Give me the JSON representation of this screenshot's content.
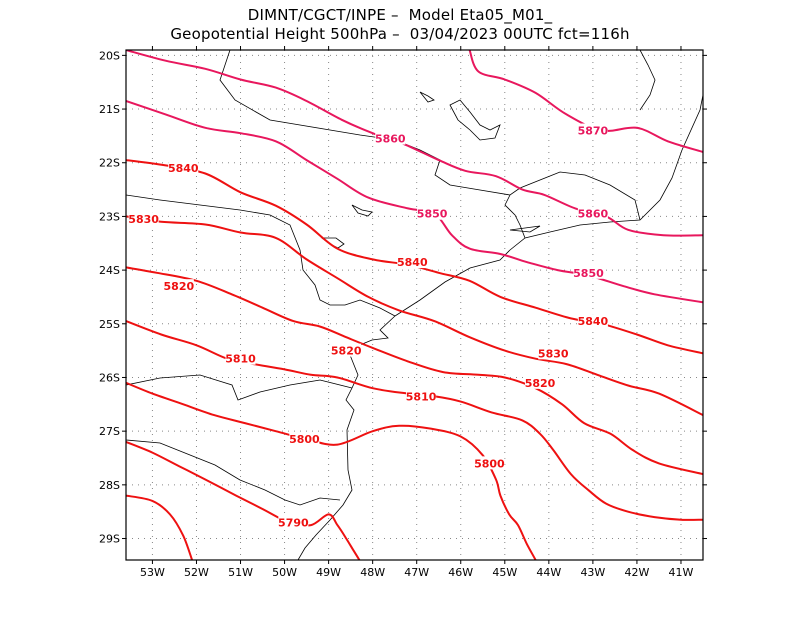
{
  "header": {
    "line1": "DIMNT/CGCT/INPE –  Model Eta05_M01_",
    "line2": "Geopotential Height 500hPa –  03/04/2023 00UTC fct=116h"
  },
  "map": {
    "lon_range": [
      -53.6,
      -40.5
    ],
    "lat_range": [
      -29.4,
      -19.9
    ],
    "lat_labels": [
      "20S",
      "21S",
      "22S",
      "23S",
      "24S",
      "25S",
      "26S",
      "27S",
      "28S",
      "29S"
    ],
    "lat_values": [
      -20,
      -21,
      -22,
      -23,
      -24,
      -25,
      -26,
      -27,
      -28,
      -29
    ],
    "lon_labels": [
      "53W",
      "52W",
      "51W",
      "50W",
      "49W",
      "48W",
      "47W",
      "46W",
      "45W",
      "44W",
      "43W",
      "42W",
      "41W"
    ],
    "lon_values": [
      -53,
      -52,
      -51,
      -50,
      -49,
      -48,
      -47,
      -46,
      -45,
      -44,
      -43,
      -42,
      -41
    ],
    "grid": true,
    "colors": {
      "contour_high": "#e8175d",
      "contour_low": "#ee1111",
      "boundary": "#000000",
      "grid": "#888888"
    }
  },
  "chart_data": {
    "type": "contour",
    "field": "geopotential height",
    "contours": [
      {
        "value": 5870,
        "label": "5870",
        "lon": [
          -45.8,
          -45.6,
          -45.0,
          -44.3,
          -43.6,
          -42.8,
          -42.0,
          -41.3,
          -40.5
        ],
        "lat": [
          -19.9,
          -20.3,
          -20.45,
          -20.7,
          -21.1,
          -21.4,
          -21.35,
          -21.6,
          -21.8
        ]
      },
      {
        "value": 5860,
        "label": "5860",
        "lon": [
          -53.6,
          -52.7,
          -51.8,
          -51.0,
          -50.2,
          -49.5,
          -48.7,
          -48.0,
          -47.3,
          -46.5,
          -45.9,
          -45.2,
          -44.6,
          -44.1,
          -43.4,
          -42.7,
          -42.2,
          -41.4,
          -40.5
        ],
        "lat": [
          -19.9,
          -20.1,
          -20.25,
          -20.45,
          -20.6,
          -20.85,
          -21.2,
          -21.45,
          -21.65,
          -21.95,
          -22.15,
          -22.25,
          -22.5,
          -22.6,
          -22.85,
          -23.0,
          -23.25,
          -23.35,
          -23.35
        ]
      },
      {
        "value": 5850,
        "label": "5850",
        "lon": [
          -53.6,
          -52.7,
          -51.8,
          -51.0,
          -50.2,
          -49.5,
          -48.8,
          -48.1,
          -47.2,
          -46.6,
          -46.2,
          -45.8,
          -45.1,
          -44.5,
          -43.8,
          -43.1,
          -42.3,
          -41.6,
          -40.5
        ],
        "lat": [
          -20.85,
          -21.1,
          -21.35,
          -21.45,
          -21.6,
          -21.95,
          -22.3,
          -22.65,
          -22.85,
          -22.95,
          -23.35,
          -23.6,
          -23.7,
          -23.85,
          -24.0,
          -24.1,
          -24.3,
          -24.45,
          -24.6
        ]
      },
      {
        "value": 5840,
        "label": "5840",
        "lon": [
          -53.6,
          -52.7,
          -51.8,
          -51.0,
          -50.2,
          -49.5,
          -48.8,
          -48.0,
          -47.2,
          -46.5,
          -45.8,
          -45.1,
          -44.3,
          -43.5,
          -42.8,
          -42.0,
          -41.3,
          -40.5
        ],
        "lat": [
          -21.95,
          -22.05,
          -22.2,
          -22.55,
          -22.8,
          -23.15,
          -23.6,
          -23.8,
          -23.9,
          -24.05,
          -24.2,
          -24.5,
          -24.7,
          -24.9,
          -25.0,
          -25.2,
          -25.4,
          -25.55
        ]
      },
      {
        "value": 5830,
        "label": "5830",
        "lon": [
          -53.6,
          -52.8,
          -51.8,
          -51.0,
          -50.2,
          -49.5,
          -48.8,
          -48.1,
          -47.4,
          -46.6,
          -45.8,
          -45.0,
          -44.3,
          -43.6,
          -42.9,
          -42.2,
          -41.5,
          -40.5
        ],
        "lat": [
          -23.0,
          -23.1,
          -23.15,
          -23.3,
          -23.4,
          -23.8,
          -24.15,
          -24.5,
          -24.75,
          -24.95,
          -25.25,
          -25.5,
          -25.65,
          -25.75,
          -25.95,
          -26.15,
          -26.3,
          -26.7
        ]
      },
      {
        "value": 5820,
        "label": "5820",
        "lon": [
          -53.6,
          -52.9,
          -52.0,
          -51.2,
          -50.5,
          -49.8,
          -49.2,
          -48.6,
          -48.0,
          -47.2,
          -46.4,
          -45.6,
          -45.0,
          -44.3,
          -43.7,
          -43.2,
          -42.6,
          -42.1,
          -41.5,
          -40.5
        ],
        "lat": [
          -23.95,
          -24.05,
          -24.2,
          -24.45,
          -24.7,
          -24.95,
          -25.05,
          -25.25,
          -25.45,
          -25.7,
          -25.9,
          -25.95,
          -26.0,
          -26.2,
          -26.5,
          -26.85,
          -27.05,
          -27.35,
          -27.6,
          -27.8
        ]
      },
      {
        "value": 5810,
        "label": "5810",
        "lon": [
          -53.6,
          -52.8,
          -52.0,
          -51.3,
          -50.7,
          -50.0,
          -49.4,
          -48.8,
          -48.0,
          -47.2,
          -46.6,
          -46.0,
          -45.3,
          -44.6,
          -44.2,
          -43.9,
          -43.5,
          -43.1,
          -42.7,
          -42.2,
          -41.6,
          -41.0,
          -40.5
        ],
        "lat": [
          -24.95,
          -25.2,
          -25.4,
          -25.65,
          -25.75,
          -25.85,
          -25.95,
          -26.0,
          -26.2,
          -26.3,
          -26.35,
          -26.45,
          -26.65,
          -26.8,
          -27.05,
          -27.35,
          -27.8,
          -28.1,
          -28.35,
          -28.5,
          -28.6,
          -28.65,
          -28.65
        ]
      },
      {
        "value": 5800,
        "label": "5800",
        "lon": [
          -53.6,
          -53.0,
          -52.3,
          -51.6,
          -50.9,
          -50.2,
          -49.5,
          -48.8,
          -48.0,
          -47.4,
          -46.7,
          -46.0,
          -45.5,
          -45.2,
          -45.1,
          -44.9,
          -44.7,
          -44.5,
          -44.3
        ],
        "lat": [
          -26.1,
          -26.3,
          -26.5,
          -26.7,
          -26.85,
          -27.0,
          -27.15,
          -27.25,
          -27.0,
          -26.9,
          -26.95,
          -27.1,
          -27.45,
          -27.9,
          -28.2,
          -28.55,
          -28.75,
          -29.1,
          -29.4
        ]
      },
      {
        "value": 5790,
        "label": "5790",
        "lon": [
          -53.6,
          -53.0,
          -52.4,
          -51.8,
          -51.1,
          -50.5,
          -49.9,
          -49.4,
          -49.0,
          -48.8,
          -48.6,
          -48.45,
          -48.3
        ],
        "lat": [
          -27.2,
          -27.4,
          -27.65,
          -27.9,
          -28.2,
          -28.45,
          -28.7,
          -28.75,
          -28.55,
          -28.75,
          -29.0,
          -29.2,
          -29.4
        ]
      },
      {
        "value": 5790,
        "label": "",
        "lon": [
          -53.6,
          -53.0,
          -52.6,
          -52.3,
          -52.1
        ],
        "lat": [
          -28.2,
          -28.3,
          -28.55,
          -28.95,
          -29.4
        ]
      }
    ],
    "contour_labels": [
      {
        "text": "5870",
        "lon": -43.0,
        "lat": -21.4
      },
      {
        "text": "5860",
        "lon": -47.6,
        "lat": -21.55
      },
      {
        "text": "5860",
        "lon": -43.0,
        "lat": -22.95
      },
      {
        "text": "5850",
        "lon": -46.65,
        "lat": -22.95
      },
      {
        "text": "5850",
        "lon": -43.1,
        "lat": -24.05
      },
      {
        "text": "5840",
        "lon": -52.3,
        "lat": -22.1
      },
      {
        "text": "5840",
        "lon": -47.1,
        "lat": -23.85
      },
      {
        "text": "5840",
        "lon": -43.0,
        "lat": -24.95
      },
      {
        "text": "5830",
        "lon": -53.2,
        "lat": -23.05
      },
      {
        "text": "5830",
        "lon": -43.9,
        "lat": -25.55
      },
      {
        "text": "5820",
        "lon": -52.4,
        "lat": -24.3
      },
      {
        "text": "5820",
        "lon": -48.6,
        "lat": -25.5
      },
      {
        "text": "5820",
        "lon": -44.2,
        "lat": -26.1
      },
      {
        "text": "5810",
        "lon": -51.0,
        "lat": -25.65
      },
      {
        "text": "5810",
        "lon": -46.9,
        "lat": -26.35
      },
      {
        "text": "5800",
        "lon": -49.55,
        "lat": -27.15
      },
      {
        "text": "5800",
        "lon": -45.35,
        "lat": -27.6
      },
      {
        "text": "5790",
        "lon": -49.8,
        "lat": -28.7
      }
    ]
  }
}
